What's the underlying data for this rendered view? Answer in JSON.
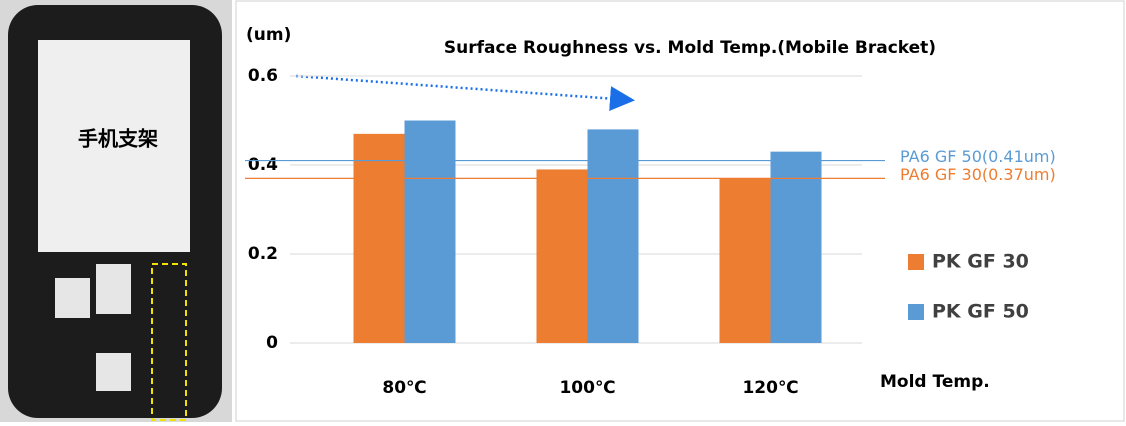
{
  "image": {
    "label": "手机支架"
  },
  "chart_data": {
    "type": "bar",
    "title": "Surface Roughness vs. Mold Temp.(Mobile Bracket)",
    "y_label": "(um)",
    "x_label": "Mold Temp.",
    "categories": [
      "80℃",
      "100℃",
      "120℃"
    ],
    "series": [
      {
        "name": "PK GF 30",
        "color": "#ed7d31",
        "values": [
          0.47,
          0.39,
          0.37
        ]
      },
      {
        "name": "PK GF 50",
        "color": "#5b9bd5",
        "values": [
          0.5,
          0.48,
          0.43
        ]
      }
    ],
    "reference_lines": [
      {
        "label": "PA6 GF 50(0.41um)",
        "value": 0.41,
        "color": "#5b9bd5"
      },
      {
        "label": "PA6 GF 30(0.37um)",
        "value": 0.37,
        "color": "#ed7d31"
      }
    ],
    "ylim": [
      0,
      0.6
    ],
    "yticks": [
      0,
      0.2,
      0.4,
      0.6
    ],
    "grid": true,
    "legend": "right"
  }
}
